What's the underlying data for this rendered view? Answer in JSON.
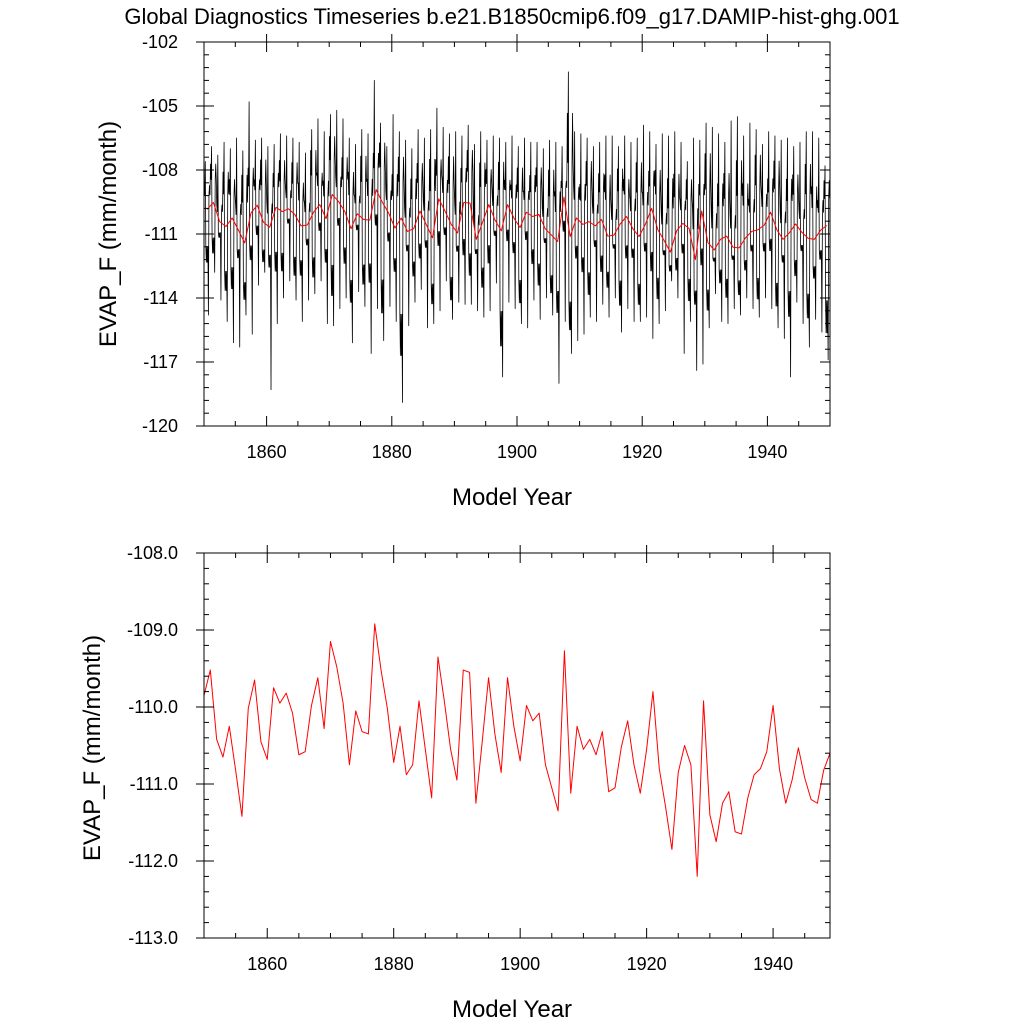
{
  "title": "Global Diagnostics Timeseries b.e21.B1850cmip6.f09_g17.DAMIP-hist-ghg.001",
  "chart_data": [
    {
      "type": "line",
      "xlabel": "Model Year",
      "ylabel": "EVAP_F (mm/month)",
      "xlim": [
        1850,
        1950
      ],
      "ylim": [
        -120,
        -102
      ],
      "x_ticks": [
        1860,
        1880,
        1900,
        1920,
        1940
      ],
      "y_ticks": [
        -120,
        -117,
        -114,
        -111,
        -108,
        -105,
        -102
      ],
      "y_tick_labels": [
        "-120",
        "-117",
        "-114",
        "-111",
        "-108",
        "-105",
        "-102"
      ],
      "grid": false,
      "monthly_extremes": {
        "annual_max": [
          -107.6,
          -106.9,
          -107.3,
          -106.7,
          -107.0,
          -106.5,
          -107.1,
          -104.8,
          -106.6,
          -106.5,
          -106.9,
          -106.8,
          -106.3,
          -106.4,
          -106.5,
          -106.7,
          -107.2,
          -106.1,
          -105.6,
          -106.2,
          -105.4,
          -105.2,
          -105.6,
          -106.5,
          -106.8,
          -106.1,
          -106.3,
          -103.8,
          -105.8,
          -106.9,
          -105.4,
          -106.2,
          -106.6,
          -107.0,
          -106.1,
          -106.5,
          -106.1,
          -105.1,
          -106.0,
          -106.3,
          -106.2,
          -106.4,
          -105.9,
          -106.8,
          -106.2,
          -106.6,
          -106.4,
          -106.5,
          -106.7,
          -106.4,
          -106.9,
          -106.5,
          -106.7,
          -106.7,
          -107.0,
          -106.6,
          -106.7,
          -106.9,
          -103.4,
          -106.2,
          -106.3,
          -106.5,
          -106.9,
          -106.7,
          -106.4,
          -106.4,
          -106.9,
          -106.4,
          -106.7,
          -106.5,
          -105.9,
          -106.2,
          -106.8,
          -106.3,
          -106.4,
          -106.2,
          -106.7,
          -107.6,
          -106.5,
          -106.6,
          -105.8,
          -106.0,
          -106.3,
          -106.7,
          -105.7,
          -105.5,
          -106.4,
          -105.8,
          -106.1,
          -106.8,
          -106.2,
          -106.4,
          -106.6,
          -106.5,
          -106.9,
          -106.7,
          -106.2,
          -106.2,
          -106.5,
          -107.8
        ],
        "annual_min": [
          -114.8,
          -112.8,
          -114.1,
          -115.1,
          -116.1,
          -116.3,
          -114.8,
          -115.7,
          -113.4,
          -112.8,
          -118.3,
          -115.2,
          -114.0,
          -113.2,
          -114.1,
          -115.1,
          -114.1,
          -113.8,
          -113.2,
          -115.2,
          -115.3,
          -114.5,
          -114.0,
          -116.1,
          -113.7,
          -114.4,
          -116.6,
          -114.5,
          -116.0,
          -114.4,
          -115.1,
          -118.9,
          -115.3,
          -114.2,
          -113.6,
          -115.4,
          -115.2,
          -114.6,
          -113.2,
          -115.0,
          -114.2,
          -114.3,
          -114.3,
          -114.6,
          -114.9,
          -114.6,
          -113.3,
          -117.7,
          -114.2,
          -114.5,
          -115.2,
          -115.4,
          -114.1,
          -115.0,
          -114.0,
          -114.8,
          -118.0,
          -115.1,
          -116.6,
          -116.0,
          -115.7,
          -114.9,
          -115.1,
          -114.3,
          -114.9,
          -114.0,
          -115.6,
          -114.5,
          -115.1,
          -115.1,
          -114.9,
          -115.9,
          -115.2,
          -114.6,
          -113.2,
          -114.0,
          -116.6,
          -115.1,
          -117.4,
          -117.1,
          -115.4,
          -113.8,
          -115.1,
          -115.2,
          -114.5,
          -114.8,
          -114.0,
          -114.5,
          -114.9,
          -114.0,
          -114.5,
          -115.4,
          -115.9,
          -117.7,
          -114.2,
          -115.2,
          -116.3,
          -115.0,
          -115.6,
          -116.9
        ]
      },
      "series": [
        {
          "color": "#000000",
          "values": []
        },
        {
          "color": "#ff0000",
          "values": []
        }
      ]
    },
    {
      "type": "line",
      "xlabel": "Model Year",
      "ylabel": "EVAP_F (mm/month)",
      "xlim": [
        1850,
        1949
      ],
      "ylim": [
        -113,
        -108
      ],
      "x_ticks": [
        1860,
        1880,
        1900,
        1920,
        1940
      ],
      "y_ticks": [
        -113,
        -112,
        -111,
        -110,
        -109,
        -108
      ],
      "y_tick_labels": [
        "-113.0",
        "-112.0",
        "-111.0",
        "-110.0",
        "-109.0",
        "-108.0"
      ],
      "grid": false,
      "x": [
        1850,
        1851,
        1852,
        1853,
        1854,
        1855,
        1856,
        1857,
        1858,
        1859,
        1860,
        1861,
        1862,
        1863,
        1864,
        1865,
        1866,
        1867,
        1868,
        1869,
        1870,
        1871,
        1872,
        1873,
        1874,
        1875,
        1876,
        1877,
        1878,
        1879,
        1880,
        1881,
        1882,
        1883,
        1884,
        1885,
        1886,
        1887,
        1888,
        1889,
        1890,
        1891,
        1892,
        1893,
        1894,
        1895,
        1896,
        1897,
        1898,
        1899,
        1900,
        1901,
        1902,
        1903,
        1904,
        1905,
        1906,
        1907,
        1908,
        1909,
        1910,
        1911,
        1912,
        1913,
        1914,
        1915,
        1916,
        1917,
        1918,
        1919,
        1920,
        1921,
        1922,
        1923,
        1924,
        1925,
        1926,
        1927,
        1928,
        1929,
        1930,
        1931,
        1932,
        1933,
        1934,
        1935,
        1936,
        1937,
        1938,
        1939,
        1940,
        1941,
        1942,
        1943,
        1944,
        1945,
        1946,
        1947,
        1948,
        1949
      ],
      "series": [
        {
          "color": "#ff0000",
          "values": [
            -109.85,
            -109.52,
            -110.42,
            -110.65,
            -110.25,
            -110.82,
            -111.42,
            -110.02,
            -109.65,
            -110.45,
            -110.68,
            -109.75,
            -109.95,
            -109.82,
            -110.08,
            -110.62,
            -110.58,
            -109.98,
            -109.62,
            -110.28,
            -109.15,
            -109.48,
            -109.95,
            -110.75,
            -110.05,
            -110.32,
            -110.35,
            -108.92,
            -109.52,
            -110.02,
            -110.72,
            -110.25,
            -110.88,
            -110.75,
            -109.92,
            -110.55,
            -111.18,
            -109.35,
            -109.92,
            -110.55,
            -110.95,
            -109.52,
            -109.55,
            -111.25,
            -110.45,
            -109.62,
            -110.35,
            -110.85,
            -109.62,
            -110.25,
            -110.7,
            -109.98,
            -110.18,
            -110.08,
            -110.75,
            -111.05,
            -111.35,
            -109.27,
            -111.12,
            -110.25,
            -110.55,
            -110.42,
            -110.62,
            -110.32,
            -111.1,
            -111.05,
            -110.52,
            -110.18,
            -110.75,
            -111.12,
            -110.55,
            -109.8,
            -110.8,
            -111.3,
            -111.85,
            -110.85,
            -110.5,
            -110.75,
            -112.2,
            -109.92,
            -111.4,
            -111.75,
            -111.25,
            -111.1,
            -111.62,
            -111.65,
            -111.18,
            -110.88,
            -110.8,
            -110.58,
            -109.98,
            -110.8,
            -111.25,
            -110.95,
            -110.53,
            -110.92,
            -111.2,
            -111.25,
            -110.82,
            -110.6
          ]
        }
      ]
    }
  ]
}
